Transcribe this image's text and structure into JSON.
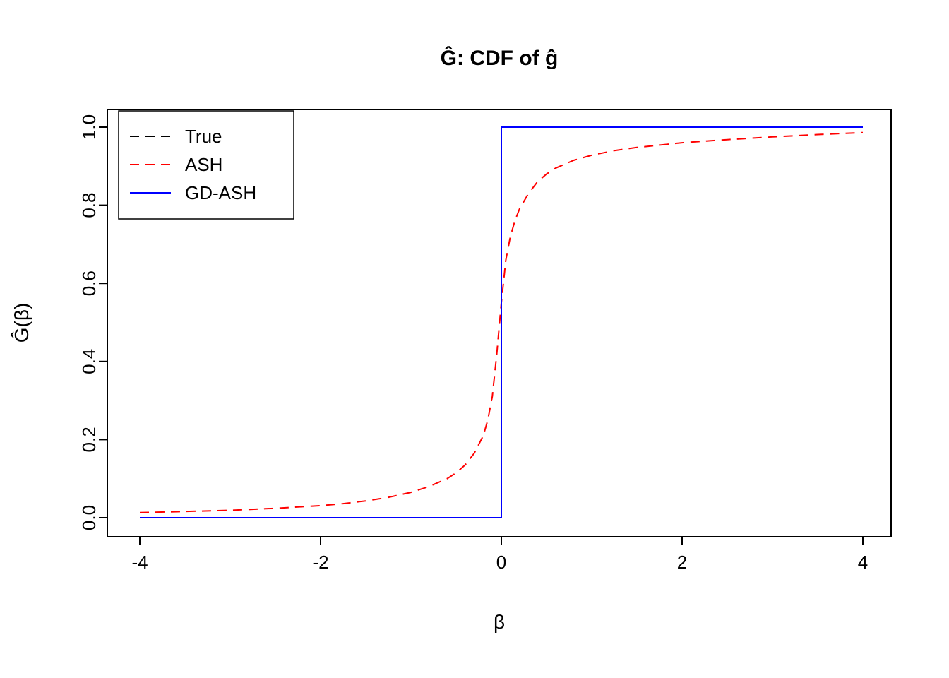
{
  "page": {
    "background": "#ffffff"
  },
  "chart_data": {
    "type": "line",
    "title": "Ĝ: CDF of ĝ",
    "xlabel": "β",
    "ylabel": "Ĝ(β)",
    "xlim": [
      -4,
      4
    ],
    "ylim": [
      0,
      1
    ],
    "grid": false,
    "legend_position": "top-left",
    "x_ticks": [
      {
        "v": -4,
        "label": "-4"
      },
      {
        "v": -2,
        "label": "-2"
      },
      {
        "v": 0,
        "label": "0"
      },
      {
        "v": 2,
        "label": "2"
      },
      {
        "v": 4,
        "label": "4"
      }
    ],
    "y_ticks": [
      {
        "v": 0.0,
        "label": "0.0"
      },
      {
        "v": 0.2,
        "label": "0.2"
      },
      {
        "v": 0.4,
        "label": "0.4"
      },
      {
        "v": 0.6,
        "label": "0.6"
      },
      {
        "v": 0.8,
        "label": "0.8"
      },
      {
        "v": 1.0,
        "label": "1.0"
      }
    ],
    "series": [
      {
        "name": "True",
        "color": "#000000",
        "style": "dashed",
        "points": [
          [
            -4,
            0
          ],
          [
            0,
            0
          ],
          [
            0,
            1
          ],
          [
            4,
            1
          ]
        ]
      },
      {
        "name": "ASH",
        "color": "#ff0000",
        "style": "dashed",
        "points": [
          [
            -4,
            0.013
          ],
          [
            -3.5,
            0.016
          ],
          [
            -3,
            0.019
          ],
          [
            -2.5,
            0.024
          ],
          [
            -2,
            0.031
          ],
          [
            -1.75,
            0.036
          ],
          [
            -1.5,
            0.043
          ],
          [
            -1.25,
            0.052
          ],
          [
            -1,
            0.065
          ],
          [
            -0.8,
            0.08
          ],
          [
            -0.6,
            0.1
          ],
          [
            -0.5,
            0.115
          ],
          [
            -0.4,
            0.135
          ],
          [
            -0.3,
            0.165
          ],
          [
            -0.2,
            0.21
          ],
          [
            -0.15,
            0.25
          ],
          [
            -0.1,
            0.31
          ],
          [
            -0.05,
            0.42
          ],
          [
            0,
            0.55
          ],
          [
            0.05,
            0.66
          ],
          [
            0.1,
            0.72
          ],
          [
            0.15,
            0.76
          ],
          [
            0.2,
            0.79
          ],
          [
            0.3,
            0.83
          ],
          [
            0.4,
            0.86
          ],
          [
            0.5,
            0.88
          ],
          [
            0.6,
            0.895
          ],
          [
            0.8,
            0.915
          ],
          [
            1,
            0.928
          ],
          [
            1.25,
            0.94
          ],
          [
            1.5,
            0.948
          ],
          [
            2,
            0.96
          ],
          [
            2.5,
            0.968
          ],
          [
            3,
            0.975
          ],
          [
            3.5,
            0.981
          ],
          [
            4,
            0.986
          ]
        ]
      },
      {
        "name": "GD-ASH",
        "color": "#0000ff",
        "style": "solid",
        "points": [
          [
            -4,
            0
          ],
          [
            0,
            0
          ],
          [
            0,
            1
          ],
          [
            4,
            1
          ]
        ]
      }
    ]
  }
}
